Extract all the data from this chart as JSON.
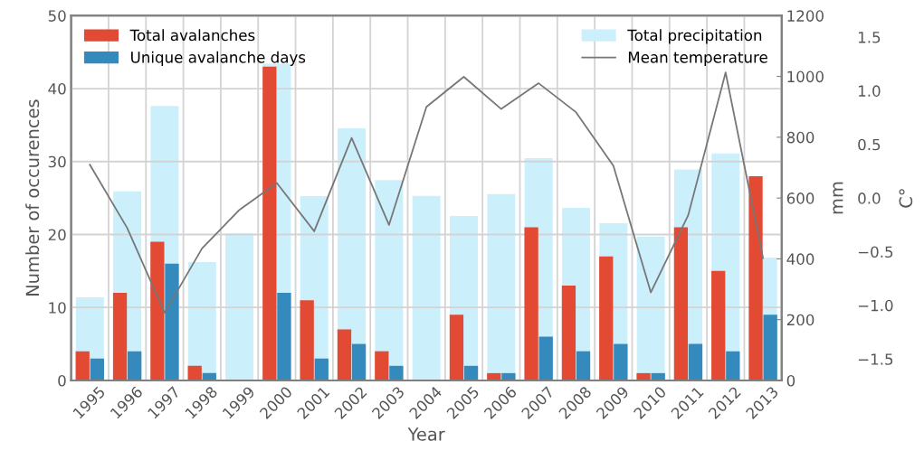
{
  "chart_data": {
    "type": "bar",
    "xlabel": "Year",
    "ylabel": "Number of occurences",
    "y2label": "mm",
    "y3label": "C°",
    "categories": [
      "1995",
      "1996",
      "1997",
      "1998",
      "1999",
      "2000",
      "2001",
      "2002",
      "2003",
      "2004",
      "2005",
      "2006",
      "2007",
      "2008",
      "2009",
      "2010",
      "2011",
      "2012",
      "2013"
    ],
    "series": [
      {
        "name": "Total precipitation",
        "axis": "y2",
        "color": "#cceffc",
        "values": [
          273,
          622,
          903,
          389,
          484,
          1042,
          606,
          829,
          659,
          607,
          541,
          613,
          731,
          568,
          517,
          473,
          694,
          747,
          404
        ]
      },
      {
        "name": "Total avalanches",
        "color": "#e24a33",
        "values": [
          4,
          12,
          19,
          2,
          0,
          43,
          11,
          7,
          4,
          0,
          9,
          1,
          21,
          13,
          17,
          1,
          21,
          15,
          28
        ]
      },
      {
        "name": "Unique avalanche days",
        "color": "#348abd",
        "values": [
          3,
          4,
          16,
          1,
          0,
          12,
          3,
          5,
          2,
          0,
          2,
          1,
          6,
          4,
          5,
          1,
          5,
          4,
          9
        ]
      },
      {
        "name": "Mean temperature",
        "type": "line",
        "axis": "y3",
        "color": "#777777",
        "values": [
          0.31,
          -0.28,
          -1.07,
          -0.47,
          -0.11,
          0.14,
          -0.31,
          0.56,
          -0.25,
          0.85,
          1.13,
          0.83,
          1.07,
          0.8,
          0.3,
          -0.88,
          -0.16,
          1.17,
          -0.56
        ]
      }
    ],
    "ylim": [
      0,
      50
    ],
    "yticks": [
      0,
      10,
      20,
      30,
      40,
      50
    ],
    "y2lim": [
      0,
      1200
    ],
    "y2ticks": [
      0,
      200,
      400,
      600,
      800,
      1000,
      1200
    ],
    "y3lim": [
      -1.7,
      1.7
    ],
    "y3ticks": [
      {
        "value": -1.5,
        "label": "−1.5"
      },
      {
        "value": -1.0,
        "label": "−1.0"
      },
      {
        "value": -0.5,
        "label": "−0.5"
      },
      {
        "value": 0.0,
        "label": "0.0"
      },
      0.5,
      {
        "value": 1.0,
        "label": "1.0"
      },
      1.5
    ],
    "grid": true,
    "legend": "top",
    "marker": "none",
    "line_style": "solid"
  }
}
